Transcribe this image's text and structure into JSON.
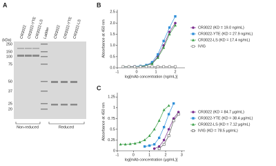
{
  "gel": {
    "panel": "A",
    "unit": "(kDa)",
    "lanes": [
      "CR3022",
      "CR3022-YTE",
      "CR3022-LS",
      "Ladder",
      "CR3022",
      "CR3022-YTE",
      "CR3022-LS"
    ],
    "markers": [
      "250",
      "150",
      "100",
      "75",
      "50",
      "37",
      "25",
      "20"
    ],
    "groups": [
      "Non-reduced",
      "Reduced"
    ]
  },
  "chart_data": [
    {
      "type": "line",
      "panel": "B",
      "y_label": "Absorbance at 450 nm",
      "x_label": "log[mAb concentration (ng/mL)]",
      "xlim": [
        -1,
        2.5
      ],
      "xticks": [
        -1,
        0,
        1,
        2
      ],
      "ylim": [
        0,
        2.6
      ],
      "yticks": [
        {
          "value": 0,
          "label": "0.0"
        },
        {
          "value": 0.5,
          "label": "0.5"
        },
        {
          "value": 1,
          "label": "1.0"
        },
        {
          "value": 1.5,
          "label": "1.5"
        },
        {
          "value": 2,
          "label": "2.0"
        },
        {
          "value": 2.5,
          "label": "2.5"
        }
      ],
      "x": [
        -0.7,
        -0.4,
        -0.1,
        0.2,
        0.5,
        0.8,
        1.1,
        1.4,
        1.7,
        2.0
      ],
      "series": [
        {
          "name": "CR3022 (KD = 19.0 ng/mL)",
          "color": "#7b2d8e",
          "marker": "circle",
          "values": [
            0.05,
            0.05,
            0.06,
            0.07,
            0.1,
            0.2,
            0.5,
            1.0,
            1.6,
            2.0
          ]
        },
        {
          "name": "CR3022-YTE (KD = 27.9 ng/mL)",
          "color": "#2f8fd8",
          "marker": "square",
          "values": [
            0.05,
            0.05,
            0.06,
            0.08,
            0.12,
            0.25,
            0.6,
            1.2,
            1.8,
            2.3
          ]
        },
        {
          "name": "CR3022-LS (KD = 17.4 ng/mL)",
          "color": "#3a9e47",
          "marker": "triangle",
          "values": [
            0.05,
            0.05,
            0.05,
            0.06,
            0.09,
            0.18,
            0.45,
            0.9,
            1.5,
            1.9
          ]
        },
        {
          "name": "IVIG",
          "color": "#777777",
          "marker": "open-square",
          "values": [
            0.05,
            0.05,
            0.05,
            0.05,
            0.05,
            0.05,
            0.05,
            0.05,
            0.05,
            0.05
          ]
        }
      ]
    },
    {
      "type": "line",
      "panel": "C",
      "y_label": "Absorbance at 450 nm",
      "x_label": "log[mAb concentration (μg/mL)]",
      "xlim": [
        -1,
        3.2
      ],
      "xticks": [
        -1,
        0,
        1,
        2,
        3
      ],
      "ylim": [
        0,
        1.35
      ],
      "yticks": [
        0,
        0.25,
        0.5,
        0.75,
        1,
        1.25
      ],
      "x": [
        -0.8,
        -0.5,
        -0.2,
        0.1,
        0.4,
        0.7,
        1.0,
        1.3,
        1.6,
        1.9,
        2.2,
        2.5,
        2.8
      ],
      "series": [
        {
          "name": "CR3022 (KD = 84.7 μg/mL)",
          "color": "#7b2d8e",
          "marker": "circle",
          "values": [
            null,
            null,
            null,
            null,
            null,
            null,
            null,
            0.05,
            0.1,
            0.25,
            0.5,
            0.75,
            0.9
          ]
        },
        {
          "name": "CR3022-YTE (KD = 38.4 μg/mL)",
          "color": "#2f8fd8",
          "marker": "square",
          "values": [
            null,
            null,
            null,
            null,
            null,
            0.1,
            0.12,
            0.15,
            0.3,
            0.55,
            0.85,
            1.1,
            null
          ]
        },
        {
          "name": "CR3022-LS (KD = 7.12 μg/mL)",
          "color": "#3a9e47",
          "marker": "triangle",
          "values": [
            0.15,
            0.15,
            0.16,
            0.17,
            0.2,
            0.25,
            0.35,
            0.5,
            0.7,
            0.95,
            1.05,
            null,
            null
          ]
        },
        {
          "name": "IVIG (KD = 78.5 μg/mL)",
          "color": "#555555",
          "marker": "open-square",
          "values": [
            null,
            null,
            null,
            null,
            null,
            null,
            null,
            null,
            0.05,
            0.15,
            0.35,
            0.7,
            0.85
          ]
        }
      ]
    }
  ]
}
